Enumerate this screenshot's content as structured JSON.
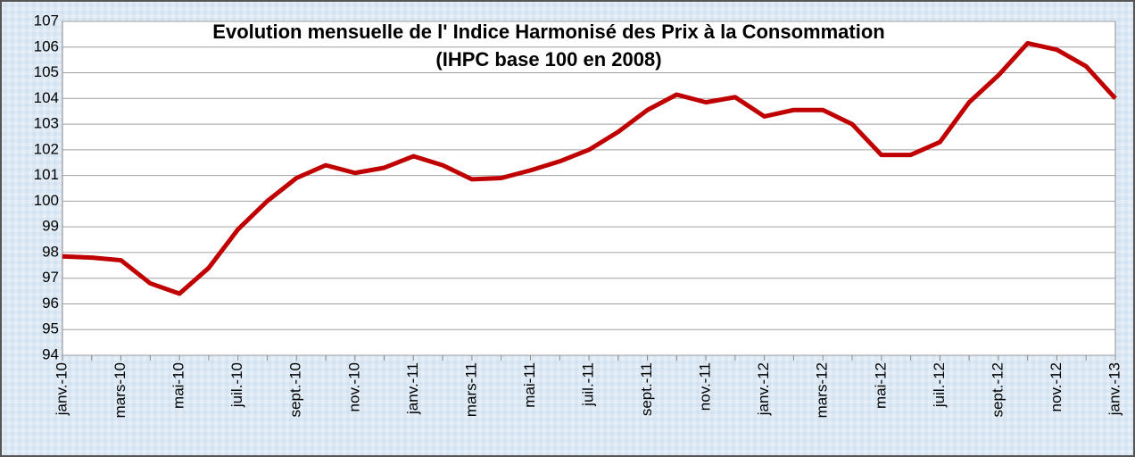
{
  "chart_data": {
    "type": "line",
    "title": "Evolution mensuelle de l' Indice Harmonisé des Prix à la Consommation",
    "subtitle": "(IHPC base 100 en 2008)",
    "categories": [
      "janv.-10",
      null,
      "mars-10",
      null,
      "mai-10",
      null,
      "juil.-10",
      null,
      "sept.-10",
      null,
      "nov.-10",
      null,
      "janv.-11",
      null,
      "mars-11",
      null,
      "mai-11",
      null,
      "juil.-11",
      null,
      "sept.-11",
      null,
      "nov.-11",
      null,
      "janv.-12",
      null,
      "mars-12",
      null,
      "mai-12",
      null,
      "juil.-12",
      null,
      "sept.-12",
      null,
      "nov.-12",
      null,
      "janv.-13"
    ],
    "values": [
      97.85,
      97.8,
      97.7,
      96.8,
      96.4,
      97.4,
      98.9,
      100.0,
      100.9,
      101.4,
      101.1,
      101.3,
      101.75,
      101.4,
      100.85,
      100.9,
      101.2,
      101.55,
      102.0,
      102.7,
      103.55,
      104.15,
      103.85,
      104.05,
      103.3,
      103.55,
      103.55,
      103.0,
      101.8,
      101.8,
      102.3,
      103.85,
      104.9,
      106.15,
      105.9,
      105.25,
      104.0
    ],
    "color": "#c00000",
    "ylim": [
      94,
      107
    ],
    "yticks": [
      94,
      95,
      96,
      97,
      98,
      99,
      100,
      101,
      102,
      103,
      104,
      105,
      106,
      107
    ],
    "grid": true
  }
}
